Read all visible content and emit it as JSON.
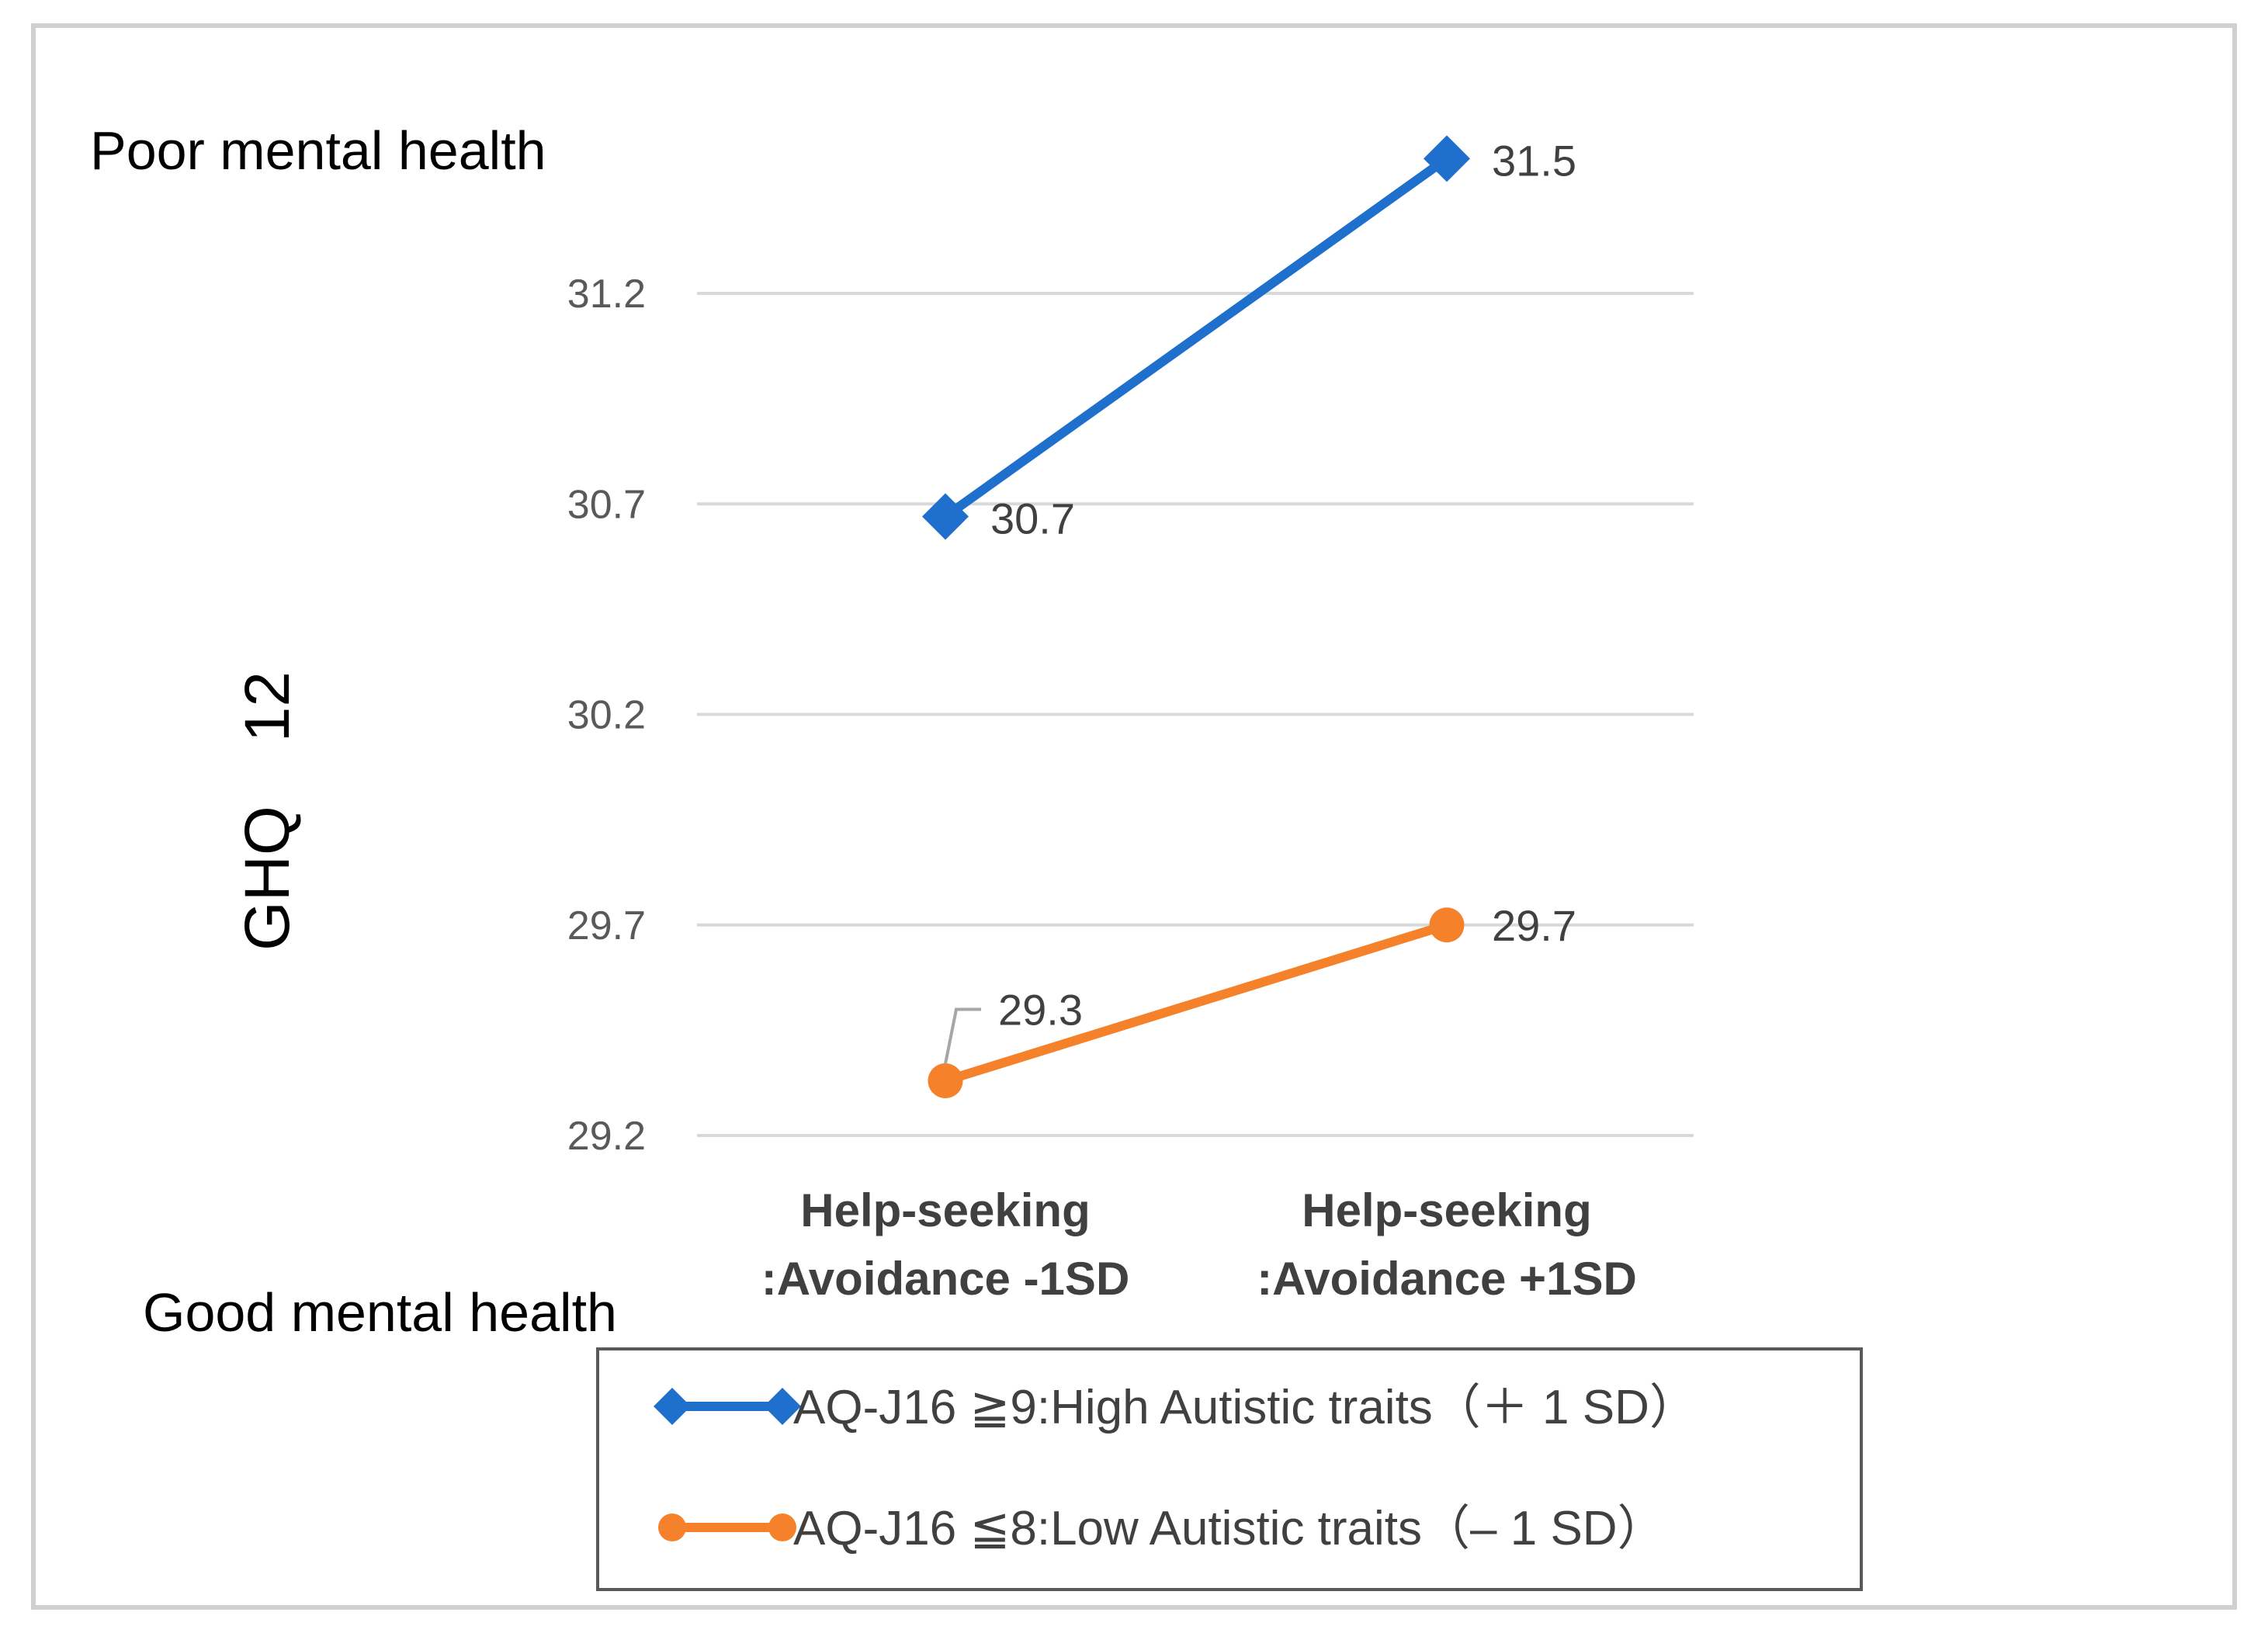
{
  "annotations": {
    "top": "Poor mental health",
    "bottom": "Good mental health"
  },
  "colors": {
    "high": "#1f6fcc",
    "low": "#f5822a",
    "grid": "#d9d9d9",
    "leader": "#a6a6a6"
  },
  "chart_data": {
    "type": "line",
    "title": "",
    "xlabel": "",
    "ylabel": "GHQ　12",
    "ylim": [
      29.2,
      31.2
    ],
    "yticks": [
      31.2,
      30.7,
      30.2,
      29.7,
      29.2
    ],
    "categories": [
      [
        "Help-seeking",
        ":Avoidance -1SD"
      ],
      [
        "Help-seeking",
        ":Avoidance +1SD"
      ]
    ],
    "series": [
      {
        "name": "AQ-J16 ≧9:High Autistic traits（＋ 1 SD）",
        "marker": "diamond",
        "values": [
          30.67,
          31.52
        ],
        "labels": [
          "30.7",
          "31.5"
        ]
      },
      {
        "name": "AQ-J16 ≦8:Low Autistic traits（– 1 SD）",
        "marker": "circle",
        "values": [
          29.33,
          29.7
        ],
        "labels": [
          "29.3",
          "29.7"
        ]
      }
    ],
    "legend_position": "bottom"
  }
}
